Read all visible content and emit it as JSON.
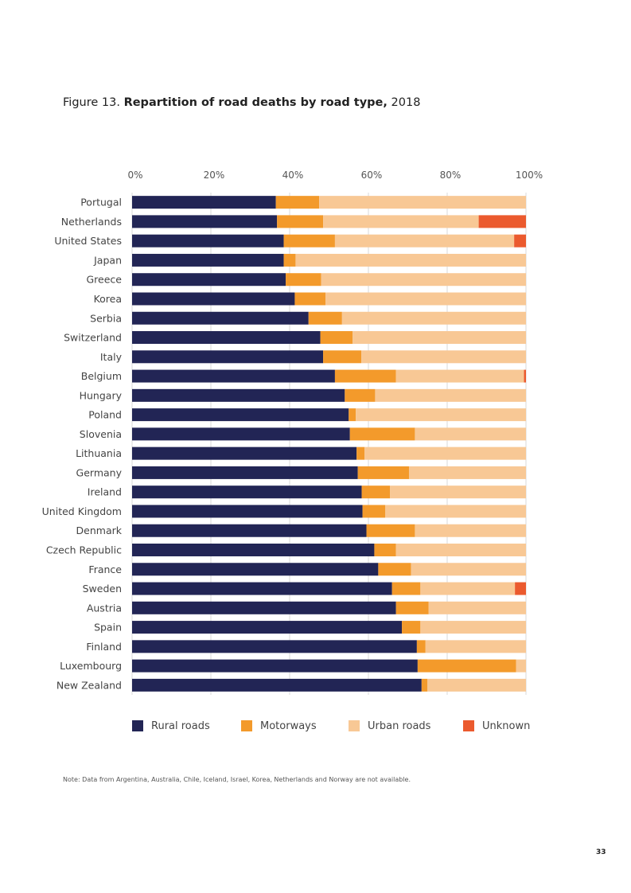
{
  "figure": {
    "label": "Figure 13.",
    "title_bold": "Repartition of road deaths by road type,",
    "year": "2018"
  },
  "colors": {
    "rural": "#222555",
    "motorways": "#F39A2B",
    "urban": "#F8C895",
    "unknown": "#EB5A2E",
    "grid": "#d9d9d9"
  },
  "chart_data": {
    "type": "bar",
    "orientation": "horizontal",
    "stacked": true,
    "percent_stacked": true,
    "title": "Repartition of road deaths by road type, 2018",
    "x_ticks": [
      "0%",
      "20%",
      "40%",
      "60%",
      "80%",
      "100%"
    ],
    "xlim": [
      0,
      100
    ],
    "x_axis_position": "top",
    "grid": true,
    "legend_position": "bottom",
    "categories": [
      "Portugal",
      "Netherlands",
      "United States",
      "Japan",
      "Greece",
      "Korea",
      "Serbia",
      "Switzerland",
      "Italy",
      "Belgium",
      "Hungary",
      "Poland",
      "Slovenia",
      "Lithuania",
      "Germany",
      "Ireland",
      "United Kingdom",
      "Denmark",
      "Czech Republic",
      "France",
      "Sweden",
      "Austria",
      "Spain",
      "Finland",
      "Luxembourg",
      "New Zealand"
    ],
    "series": [
      {
        "name": "Rural roads",
        "color_key": "rural",
        "values": [
          36.5,
          36.8,
          38.5,
          38.5,
          39,
          41.3,
          44.8,
          47.8,
          48.5,
          51.5,
          54,
          55,
          55.3,
          57,
          57.3,
          58.3,
          58.5,
          59.5,
          61.5,
          62.5,
          66,
          67,
          68.5,
          72.3,
          72.5,
          73.5
        ]
      },
      {
        "name": "Motorways",
        "color_key": "motorways",
        "values": [
          11,
          11.7,
          13,
          3,
          9,
          7.8,
          8.5,
          8.2,
          9.7,
          15.5,
          7.7,
          1.8,
          16.5,
          2,
          13,
          7.2,
          5.8,
          12.3,
          5.5,
          8.3,
          7.2,
          8.3,
          4.7,
          2.2,
          25,
          1.5
        ]
      },
      {
        "name": "Urban roads",
        "color_key": "urban",
        "values": [
          52.5,
          39.5,
          45.5,
          58.5,
          52,
          50.9,
          46.7,
          44,
          41.8,
          32.5,
          38.3,
          43.2,
          28.2,
          41,
          29.7,
          34.5,
          35.7,
          28.2,
          33,
          29.2,
          24,
          24.7,
          26.8,
          25.5,
          2.5,
          25
        ]
      },
      {
        "name": "Unknown",
        "color_key": "unknown",
        "values": [
          0,
          12,
          3,
          0,
          0,
          0,
          0,
          0,
          0,
          0.5,
          0,
          0,
          0,
          0,
          0,
          0,
          0,
          0,
          0,
          0,
          2.8,
          0,
          0,
          0,
          0,
          0
        ]
      }
    ]
  },
  "note": "Note: Data from Argentina, Australia, Chile, Iceland, Israel, Korea, Netherlands and Norway are not available.",
  "page_number": "33"
}
